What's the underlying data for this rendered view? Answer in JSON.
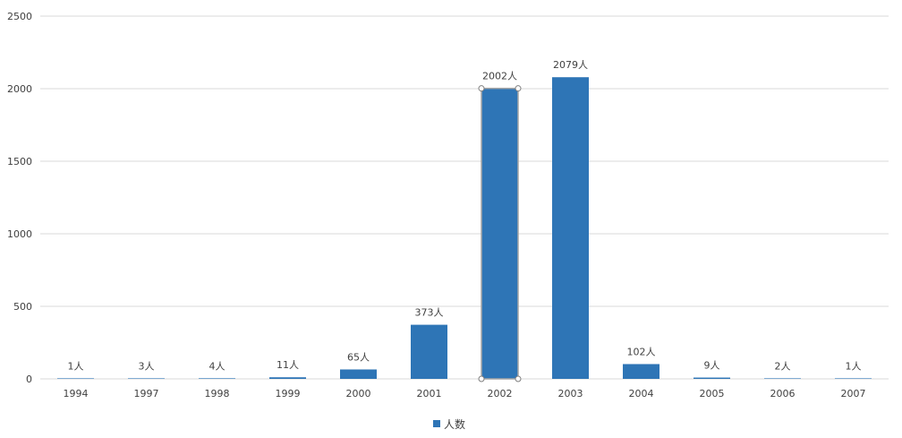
{
  "chart_data": {
    "type": "bar",
    "categories": [
      "1994",
      "1997",
      "1998",
      "1999",
      "2000",
      "2001",
      "2002",
      "2003",
      "2004",
      "2005",
      "2006",
      "2007"
    ],
    "series": [
      {
        "name": "人数",
        "values": [
          1,
          3,
          4,
          11,
          65,
          373,
          2002,
          2079,
          102,
          9,
          2,
          1
        ],
        "labels": [
          "1人",
          "3人",
          "4人",
          "11人",
          "65人",
          "373人",
          "2002人",
          "2079人",
          "102人",
          "9人",
          "2人",
          "1人"
        ]
      }
    ],
    "ylim": [
      0,
      2500
    ],
    "yticks": [
      "0",
      "500",
      "1000",
      "1500",
      "2000",
      "2500"
    ],
    "ytick_values": [
      0,
      500,
      1000,
      1500,
      2000,
      2500
    ],
    "grid": true,
    "legend_position": "bottom",
    "selected_category": "2002",
    "colors": {
      "bar": "#2E75B6",
      "grid": "#D9D9D9",
      "text": "#404040",
      "selection": "#A6A6A6"
    }
  }
}
